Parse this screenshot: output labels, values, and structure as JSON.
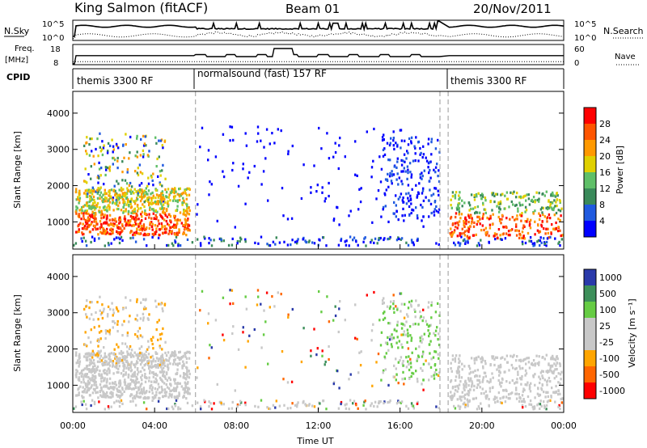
{
  "header": {
    "station": "King Salmon (fitACF)",
    "beam": "Beam 01",
    "date": "20/Nov/2011"
  },
  "panels": {
    "nsky_label": "N.Sky",
    "nsky_ticks": [
      "10^5",
      "10^0"
    ],
    "nsearch_label": "N.Search",
    "nsearch_ticks": [
      "10^5",
      "10^0"
    ],
    "freq_label_1": "Freq.",
    "freq_label_2": "[MHz]",
    "freq_ticks": [
      "18",
      "8"
    ],
    "nave_label": "Nave",
    "nave_ticks": [
      "60",
      "0"
    ],
    "cpid_label": "CPID",
    "cpid_segments": [
      "themis 3300 RF",
      "normalsound (fast) 157 RF",
      "themis 3300 RF"
    ]
  },
  "colors": {
    "power": [
      "#0000ff",
      "#205ae0",
      "#3a8a5a",
      "#5fbf68",
      "#e0d000",
      "#ff9900",
      "#ff5500",
      "#ff0000"
    ],
    "velocity": [
      "#2a3aaa",
      "#3d8f5a",
      "#66cc44",
      "#c8c8c8",
      "#c8c8c8",
      "#ffa500",
      "#ff6600",
      "#ff0000"
    ],
    "gray": "#c8c8c8"
  },
  "chart_data": [
    {
      "type": "heatmap",
      "title": "Power",
      "xlabel": "Time UT",
      "ylabel": "Slant Range [km]",
      "xticks": [
        "00:00",
        "04:00",
        "08:00",
        "12:00",
        "16:00",
        "20:00",
        "00:00"
      ],
      "yticks": [
        "1000",
        "2000",
        "3000",
        "4000"
      ],
      "ylim": [
        250,
        4600
      ],
      "colorbar_label": "Power [dB]",
      "colorbar_ticks": [
        "4",
        "8",
        "12",
        "16",
        "20",
        "24",
        "28"
      ],
      "xlim_hours": [
        0,
        24
      ]
    },
    {
      "type": "heatmap",
      "title": "Velocity",
      "xlabel": "Time UT",
      "ylabel": "Slant Range [km]",
      "xticks": [
        "00:00",
        "04:00",
        "08:00",
        "12:00",
        "16:00",
        "20:00",
        "00:00"
      ],
      "yticks": [
        "1000",
        "2000",
        "3000",
        "4000"
      ],
      "ylim": [
        250,
        4600
      ],
      "colorbar_label": "Velocity [m s⁻¹]",
      "colorbar_ticks": [
        "1000",
        "500",
        "100",
        "25",
        "-25",
        "-100",
        "-500",
        "-1000"
      ],
      "xlim_hours": [
        0,
        24
      ]
    }
  ]
}
